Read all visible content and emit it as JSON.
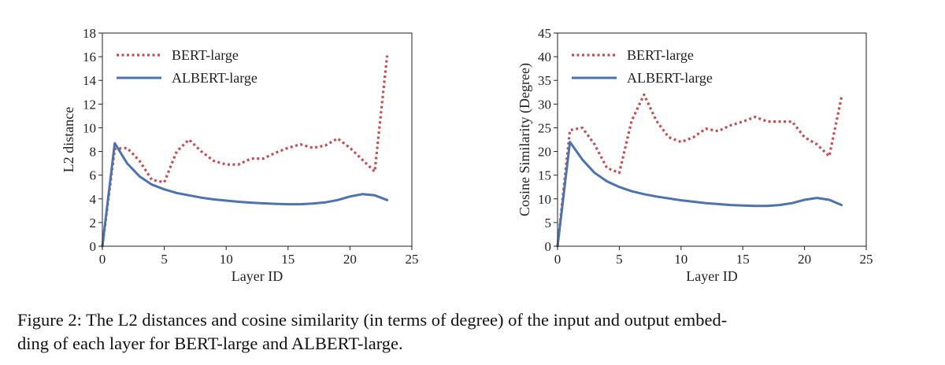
{
  "colors": {
    "bert": "#c44e52",
    "albert": "#4c72b0",
    "axis": "#222222"
  },
  "caption": "Figure 2: The L2 distances and cosine similarity (in terms of degree) of the input and output embedding of each layer for BERT-large and ALBERT-large.",
  "caption_lines": [
    "Figure 2: The L2 distances and cosine similarity (in terms of degree) of the input and output embed-",
    "ding of each layer for BERT-large and ALBERT-large."
  ],
  "chart_data": [
    {
      "type": "line",
      "xlabel": "Layer ID",
      "ylabel": "L2 distance",
      "xlim": [
        0,
        25
      ],
      "ylim": [
        0,
        18
      ],
      "xticks": [
        0,
        5,
        10,
        15,
        20,
        25
      ],
      "yticks": [
        0,
        2,
        4,
        6,
        8,
        10,
        12,
        14,
        16,
        18
      ],
      "grid": false,
      "legend_position": "top-left",
      "x": [
        0,
        1,
        2,
        3,
        4,
        5,
        6,
        7,
        8,
        9,
        10,
        11,
        12,
        13,
        14,
        15,
        16,
        17,
        18,
        19,
        20,
        21,
        22,
        23
      ],
      "series": [
        {
          "name": "BERT-large",
          "style": "dotted",
          "values": [
            0,
            8.2,
            8.3,
            7.2,
            5.6,
            5.4,
            8.0,
            9.0,
            8.0,
            7.2,
            6.9,
            6.9,
            7.4,
            7.4,
            7.9,
            8.3,
            8.6,
            8.3,
            8.5,
            9.1,
            8.3,
            7.3,
            6.3,
            16.1
          ]
        },
        {
          "name": "ALBERT-large",
          "style": "solid",
          "values": [
            0,
            8.7,
            7.0,
            5.9,
            5.2,
            4.8,
            4.5,
            4.3,
            4.1,
            3.95,
            3.85,
            3.75,
            3.68,
            3.62,
            3.58,
            3.55,
            3.55,
            3.6,
            3.7,
            3.9,
            4.2,
            4.4,
            4.3,
            3.9
          ]
        }
      ]
    },
    {
      "type": "line",
      "xlabel": "Layer ID",
      "ylabel": "Cosine Similarity (Degree)",
      "xlim": [
        0,
        25
      ],
      "ylim": [
        0,
        45
      ],
      "xticks": [
        0,
        5,
        10,
        15,
        20,
        25
      ],
      "yticks": [
        0,
        5,
        10,
        15,
        20,
        25,
        30,
        35,
        40,
        45
      ],
      "grid": false,
      "legend_position": "top-left",
      "x": [
        0,
        1,
        2,
        3,
        4,
        5,
        6,
        7,
        8,
        9,
        10,
        11,
        12,
        13,
        14,
        15,
        16,
        17,
        18,
        19,
        20,
        21,
        22,
        23
      ],
      "series": [
        {
          "name": "BERT-large",
          "style": "dotted",
          "values": [
            0,
            24.5,
            25.0,
            21.5,
            16.5,
            15.5,
            26.5,
            32.0,
            26.5,
            23.0,
            22.0,
            23.0,
            24.8,
            24.3,
            25.5,
            26.3,
            27.3,
            26.3,
            26.3,
            26.3,
            23.0,
            21.5,
            19.0,
            31.5
          ]
        },
        {
          "name": "ALBERT-large",
          "style": "solid",
          "values": [
            0,
            22.0,
            18.3,
            15.5,
            13.7,
            12.5,
            11.6,
            11.0,
            10.5,
            10.1,
            9.7,
            9.4,
            9.1,
            8.9,
            8.7,
            8.6,
            8.5,
            8.5,
            8.7,
            9.1,
            9.8,
            10.2,
            9.8,
            8.7
          ]
        }
      ]
    }
  ]
}
